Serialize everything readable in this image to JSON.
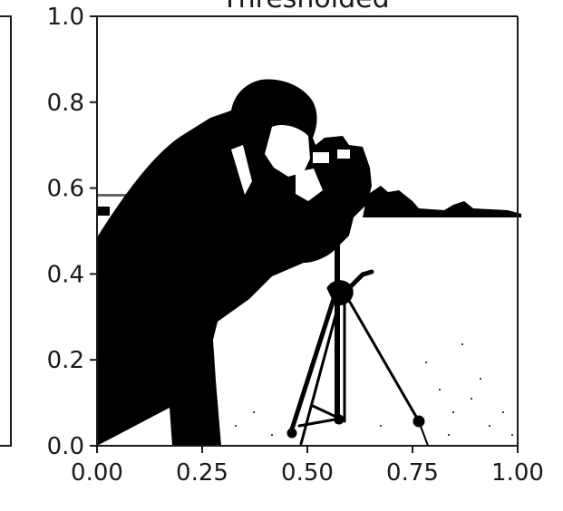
{
  "chart_data": {
    "type": "image",
    "title": "Thresholded",
    "x_ticks": [
      "0.00",
      "0.25",
      "0.50",
      "0.75",
      "1.00"
    ],
    "y_ticks": [
      "0.0",
      "0.2",
      "0.4",
      "0.6",
      "0.8",
      "1.0"
    ],
    "xlim": [
      0,
      1
    ],
    "ylim": [
      0,
      1
    ],
    "colors": {
      "foreground": "#000000",
      "background": "#ffffff",
      "axis": "#1a1a1a"
    }
  }
}
